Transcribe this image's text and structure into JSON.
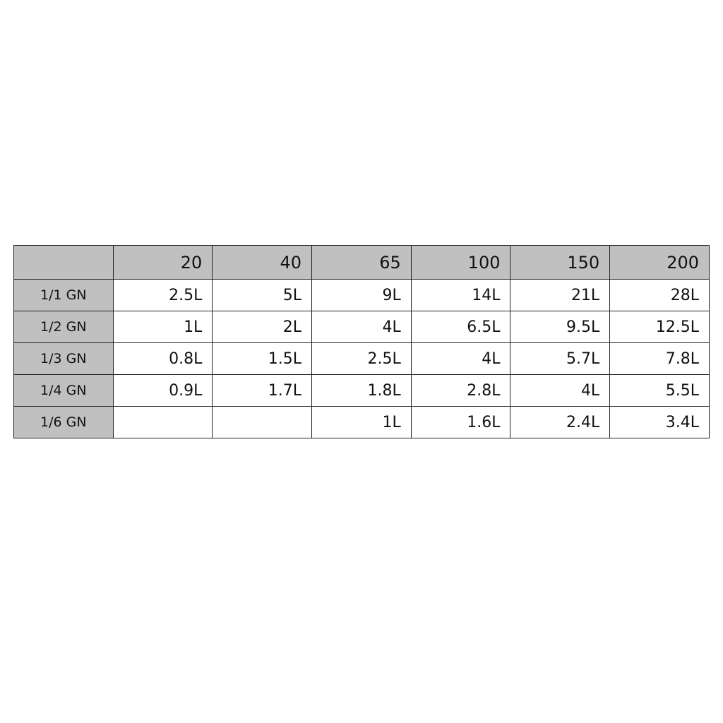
{
  "table": {
    "columns": [
      "",
      "20",
      "40",
      "65",
      "100",
      "150",
      "200"
    ],
    "rows": [
      {
        "label": "1/1 GN",
        "cells": [
          "2.5L",
          "5L",
          "9L",
          "14L",
          "21L",
          "28L"
        ]
      },
      {
        "label": "1/2 GN",
        "cells": [
          "1L",
          "2L",
          "4L",
          "6.5L",
          "9.5L",
          "12.5L"
        ]
      },
      {
        "label": "1/3 GN",
        "cells": [
          "0.8L",
          "1.5L",
          "2.5L",
          "4L",
          "5.7L",
          "7.8L"
        ]
      },
      {
        "label": "1/4 GN",
        "cells": [
          "0.9L",
          "1.7L",
          "1.8L",
          "2.8L",
          "4L",
          "5.5L"
        ]
      },
      {
        "label": "1/6 GN",
        "cells": [
          "",
          "",
          "1L",
          "1.6L",
          "2.4L",
          "3.4L"
        ]
      }
    ],
    "header_color": "#c0c0c0"
  }
}
